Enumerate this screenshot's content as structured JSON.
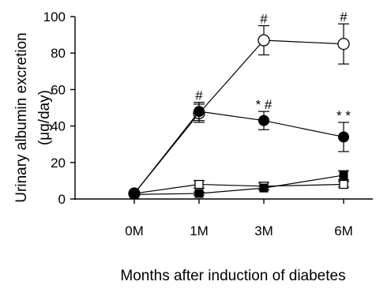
{
  "chart_data": {
    "type": "line",
    "categories": [
      "0M",
      "1M",
      "3M",
      "6M"
    ],
    "ylim": [
      0,
      100
    ],
    "yticks": [
      0,
      20,
      40,
      60,
      80,
      100
    ],
    "xlabel": "Months after induction of diabetes",
    "ylabel_lines": [
      "Urinary albumin excretion",
      "(μg/day)"
    ],
    "grid": false,
    "series": [
      {
        "marker": "circle-open",
        "values": [
          3,
          47,
          87,
          85
        ],
        "errors": [
          1,
          5,
          8,
          11
        ]
      },
      {
        "marker": "circle-filled",
        "values": [
          3,
          48,
          43,
          34
        ],
        "errors": [
          1,
          5,
          5,
          8
        ]
      },
      {
        "marker": "square-open",
        "values": [
          3,
          8,
          7,
          8
        ],
        "errors": [
          1,
          2,
          2,
          1.5
        ]
      },
      {
        "marker": "square-filled",
        "values": [
          2.5,
          3,
          6,
          13
        ],
        "errors": [
          0.8,
          0.8,
          1,
          2.5
        ]
      }
    ],
    "annotations": [
      {
        "category": "1M",
        "value": 53,
        "text": "#"
      },
      {
        "category": "3M",
        "value": 95,
        "text": "#"
      },
      {
        "category": "6M",
        "value": 96,
        "text": "#"
      },
      {
        "category": "3M",
        "value": 48,
        "text": "* #"
      },
      {
        "category": "6M",
        "value": 42,
        "text": "* *"
      }
    ]
  }
}
